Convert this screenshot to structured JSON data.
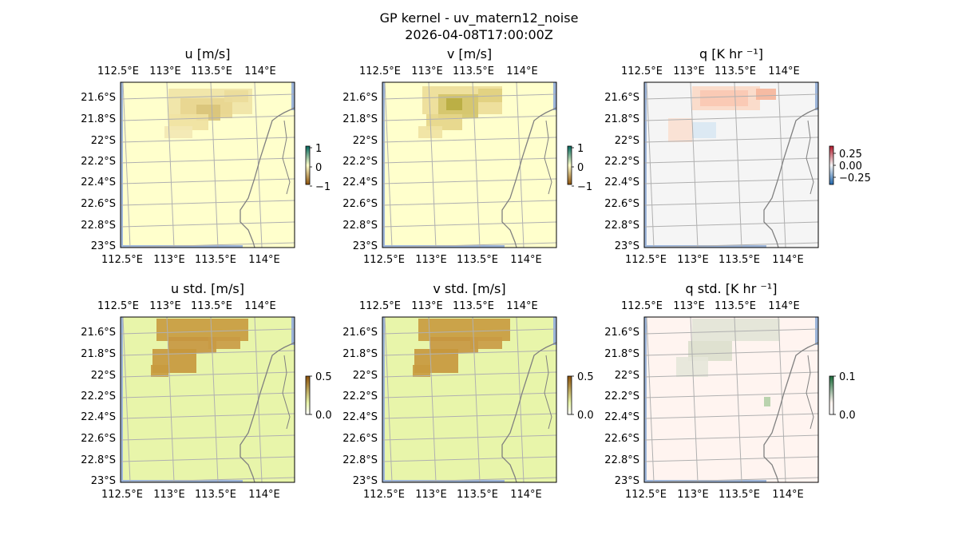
{
  "figure": {
    "title": "GP kernel - uv_matern12_noise",
    "subtitle": "2026-04-08T17:00:00Z"
  },
  "chart_data": [
    {
      "type": "heatmap",
      "title": "u [m/s]",
      "colorbar": {
        "ticks": [
          "1",
          "0",
          "−1"
        ]
      },
      "xticks": [
        "112.5°E",
        "113°E",
        "113.5°E",
        "114°E"
      ],
      "yticks": [
        "21.6°S",
        "21.8°S",
        "22°S",
        "22.2°S",
        "22.4°S",
        "22.6°S",
        "22.8°S",
        "23°S"
      ],
      "colormap": "BrBG",
      "background_color": "#ffffcc"
    },
    {
      "type": "heatmap",
      "title": "v [m/s]",
      "colorbar": {
        "ticks": [
          "1",
          "0",
          "−1"
        ]
      },
      "xticks": [
        "112.5°E",
        "113°E",
        "113.5°E",
        "114°E"
      ],
      "yticks": [
        "21.6°S",
        "21.8°S",
        "22°S",
        "22.2°S",
        "22.4°S",
        "22.6°S",
        "22.8°S",
        "23°S"
      ],
      "colormap": "BrBG",
      "background_color": "#ffffcc"
    },
    {
      "type": "heatmap",
      "title": "q [K hr ⁻¹]",
      "colorbar": {
        "ticks": [
          "0.25",
          "0.00",
          "−0.25"
        ]
      },
      "xticks": [
        "112.5°E",
        "113°E",
        "113.5°E",
        "114°E"
      ],
      "yticks": [
        "21.6°S",
        "21.8°S",
        "22°S",
        "22.2°S",
        "22.4°S",
        "22.6°S",
        "22.8°S",
        "23°S"
      ],
      "colormap": "RdBu",
      "background_color": "#f5f5f5"
    },
    {
      "type": "heatmap",
      "title": "u std. [m/s]",
      "colorbar": {
        "ticks": [
          "0.5",
          "0.0"
        ]
      },
      "xticks": [
        "112.5°E",
        "113°E",
        "113.5°E",
        "114°E"
      ],
      "yticks": [
        "21.6°S",
        "21.8°S",
        "22°S",
        "22.2°S",
        "22.4°S",
        "22.6°S",
        "22.8°S",
        "23°S"
      ],
      "colormap": "std-brown",
      "background_color": "#e8f5aa"
    },
    {
      "type": "heatmap",
      "title": "v std. [m/s]",
      "colorbar": {
        "ticks": [
          "0.5",
          "0.0"
        ]
      },
      "xticks": [
        "112.5°E",
        "113°E",
        "113.5°E",
        "114°E"
      ],
      "yticks": [
        "21.6°S",
        "21.8°S",
        "22°S",
        "22.2°S",
        "22.4°S",
        "22.6°S",
        "22.8°S",
        "23°S"
      ],
      "colormap": "std-brown",
      "background_color": "#e8f5aa"
    },
    {
      "type": "heatmap",
      "title": "q std. [K hr ⁻¹]",
      "colorbar": {
        "ticks": [
          "0.1",
          "0.0"
        ]
      },
      "xticks": [
        "112.5°E",
        "113°E",
        "113.5°E",
        "114°E"
      ],
      "yticks": [
        "21.6°S",
        "21.8°S",
        "22°S",
        "22.2°S",
        "22.4°S",
        "22.6°S",
        "22.8°S",
        "23°S"
      ],
      "colormap": "std-green",
      "background_color": "#fff4f0"
    }
  ]
}
